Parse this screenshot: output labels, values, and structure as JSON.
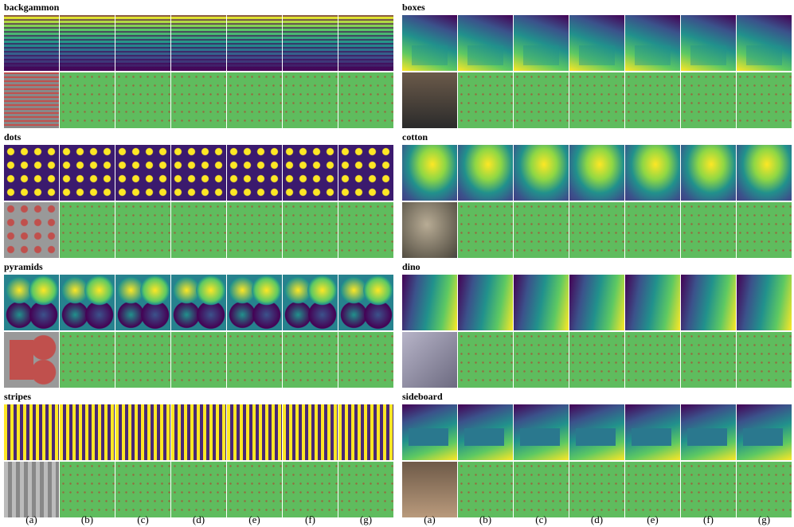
{
  "panels": [
    {
      "title": "backgammon"
    },
    {
      "title": "dots"
    },
    {
      "title": "pyramids"
    },
    {
      "title": "stripes"
    },
    {
      "title": "boxes"
    },
    {
      "title": "cotton"
    },
    {
      "title": "dino"
    },
    {
      "title": "sideboard"
    }
  ],
  "columns": [
    "(a)",
    "(b)",
    "(c)",
    "(d)",
    "(e)",
    "(f)",
    "(g)"
  ]
}
